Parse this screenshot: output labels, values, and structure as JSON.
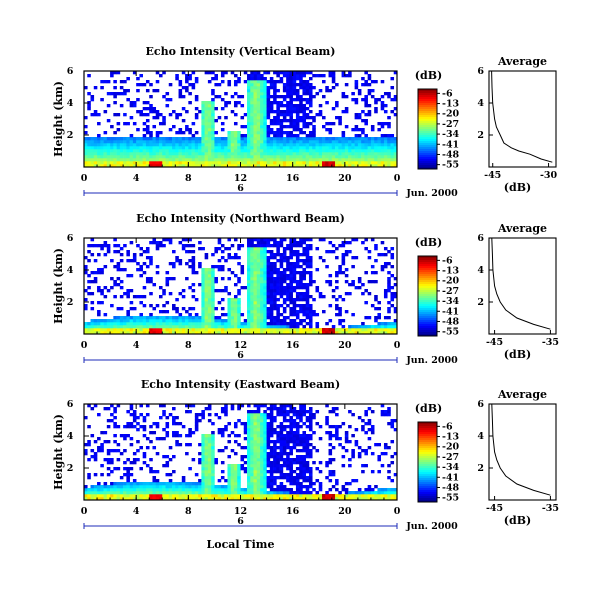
{
  "chart_data": {
    "type": "heatmap",
    "xlabel": "Local Time",
    "date_label": "Jun. 2000",
    "x_ticks": [
      "0",
      "4",
      "8",
      "12",
      "16",
      "20",
      "0"
    ],
    "xlim_hours": [
      0,
      24
    ],
    "day_label": "6",
    "ylabel": "Height (km)",
    "ylim_km": [
      0,
      6
    ],
    "y_ticks": [
      "6",
      "4",
      "2"
    ],
    "colorbar": {
      "unit": "(dB)",
      "ticks": [
        "-6",
        "-13",
        "-20",
        "-27",
        "-34",
        "-41",
        "-48",
        "-55"
      ],
      "range_db": [
        -58,
        -3
      ]
    },
    "panels": [
      {
        "title": "Echo Intensity (Vertical Beam)",
        "average": {
          "title": "Average",
          "xlabel": "(dB)",
          "x_ticks": [
            "-45",
            "-30"
          ],
          "xlim": [
            -46,
            -28
          ],
          "y_ticks": [
            "6",
            "4",
            "2"
          ],
          "profile": [
            [
              0.3,
              -29
            ],
            [
              0.5,
              -32
            ],
            [
              0.8,
              -35
            ],
            [
              1.0,
              -38
            ],
            [
              1.2,
              -40
            ],
            [
              1.5,
              -42
            ],
            [
              2.0,
              -43
            ],
            [
              2.5,
              -44
            ],
            [
              3.0,
              -44.5
            ],
            [
              4.0,
              -45
            ],
            [
              5.0,
              -45.2
            ],
            [
              6.0,
              -45.3
            ]
          ]
        }
      },
      {
        "title": "Echo Intensity (Northward Beam)",
        "average": {
          "title": "Average",
          "xlabel": "(dB)",
          "x_ticks": [
            "-45",
            "-35"
          ],
          "xlim": [
            -46,
            -34
          ],
          "y_ticks": [
            "6",
            "4",
            "2"
          ],
          "profile": [
            [
              0.3,
              -35
            ],
            [
              0.6,
              -38
            ],
            [
              1.0,
              -41
            ],
            [
              1.5,
              -43
            ],
            [
              2.0,
              -44
            ],
            [
              2.5,
              -44.6
            ],
            [
              3.0,
              -45
            ],
            [
              4.0,
              -45.3
            ],
            [
              5.0,
              -45.4
            ],
            [
              6.0,
              -45.5
            ]
          ]
        }
      },
      {
        "title": "Echo Intensity (Eastward Beam)",
        "average": {
          "title": "Average",
          "xlabel": "(dB)",
          "x_ticks": [
            "-45",
            "-35"
          ],
          "xlim": [
            -46,
            -34
          ],
          "y_ticks": [
            "6",
            "4",
            "2"
          ],
          "profile": [
            [
              0.3,
              -35
            ],
            [
              0.6,
              -38
            ],
            [
              1.0,
              -41
            ],
            [
              1.5,
              -43
            ],
            [
              2.0,
              -44
            ],
            [
              2.5,
              -44.6
            ],
            [
              3.0,
              -45
            ],
            [
              4.0,
              -45.3
            ],
            [
              5.0,
              -45.4
            ],
            [
              6.0,
              -45.5
            ]
          ]
        }
      }
    ]
  }
}
